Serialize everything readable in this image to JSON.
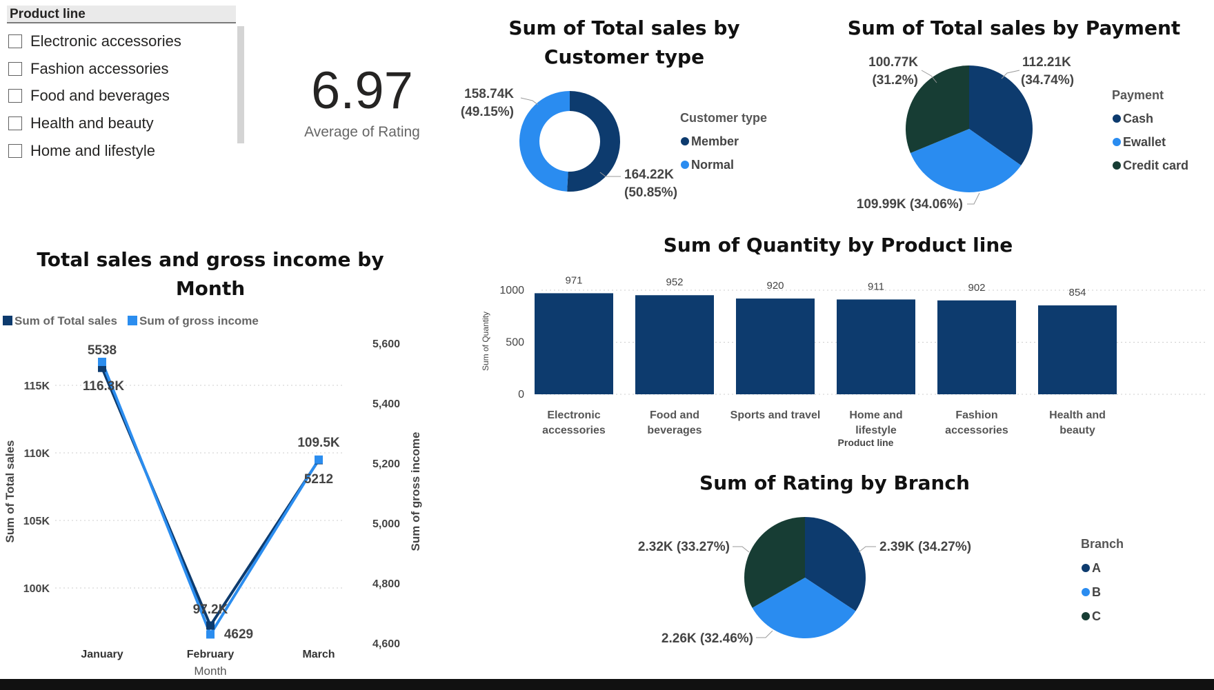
{
  "colors": {
    "member": "#0d3b6e",
    "normal": "#2a8cf0",
    "credit": "#173d34",
    "bar": "#0d3b6e",
    "line_sales": "#0d3b6e",
    "line_income": "#2b8def"
  },
  "slicer": {
    "title": "Product line",
    "items": [
      "Electronic accessories",
      "Fashion accessories",
      "Food and beverages",
      "Health and beauty",
      "Home and lifestyle"
    ]
  },
  "card": {
    "value": "6.97",
    "label": "Average of Rating"
  },
  "chart_data": [
    {
      "id": "customer_type",
      "type": "donut",
      "title_lines": [
        "Sum of Total sales by",
        "Customer type"
      ],
      "legend_title": "Customer type",
      "categories": [
        "Member",
        "Normal"
      ],
      "values": [
        164.22,
        158.74
      ],
      "labels": [
        "164.22K",
        "158.74K"
      ],
      "percents": [
        "(50.85%)",
        "(49.15%)"
      ]
    },
    {
      "id": "payment",
      "type": "pie",
      "title": "Sum of Total sales by Payment",
      "legend_title": "Payment",
      "categories": [
        "Cash",
        "Ewallet",
        "Credit card"
      ],
      "values": [
        112.21,
        109.99,
        100.77
      ],
      "labels": [
        "112.21K",
        "109.99K (34.06%)",
        "100.77K"
      ],
      "percents": [
        "(34.74%)",
        "",
        "(31.2%)"
      ]
    },
    {
      "id": "quantity",
      "type": "bar",
      "title": "Sum of Quantity by Product line",
      "xlabel": "Product line",
      "ylabel": "Sum of Quantity",
      "categories": [
        [
          "Electronic",
          "accessories"
        ],
        [
          "Food and",
          "beverages"
        ],
        [
          "Sports and travel"
        ],
        [
          "Home and",
          "lifestyle"
        ],
        [
          "Fashion",
          "accessories"
        ],
        [
          "Health and",
          "beauty"
        ]
      ],
      "values": [
        971,
        952,
        920,
        911,
        902,
        854
      ],
      "yticks": [
        0,
        500,
        1000
      ],
      "ylim": [
        0,
        1000
      ]
    },
    {
      "id": "branch",
      "type": "pie",
      "title": "Sum of Rating by Branch",
      "legend_title": "Branch",
      "categories": [
        "A",
        "B",
        "C"
      ],
      "values": [
        2.39,
        2.26,
        2.32
      ],
      "labels": [
        "2.39K (34.27%)",
        "2.26K (32.46%)",
        "2.32K (33.27%)"
      ]
    },
    {
      "id": "monthly",
      "type": "line",
      "title_lines": [
        "Total sales and gross income by",
        "Month"
      ],
      "xlabel": "Month",
      "ylabel_left": "Sum of Total sales",
      "ylabel_right": "Sum of gross income",
      "categories": [
        "January",
        "February",
        "March"
      ],
      "series": [
        {
          "name": "Sum of Total sales",
          "axis": "left",
          "values": [
            116290,
            97220,
            109460
          ],
          "labels": [
            "116.3K",
            "97.2K",
            "109.5K"
          ]
        },
        {
          "name": "Sum of gross income",
          "axis": "right",
          "values": [
            5538,
            4629,
            5212
          ],
          "labels": [
            "5538",
            "4629",
            "5212"
          ]
        }
      ],
      "left_ticks": [
        "100K",
        "105K",
        "110K",
        "115K"
      ],
      "left_tick_values": [
        100000,
        105000,
        110000,
        115000
      ],
      "right_ticks": [
        "4,600",
        "4,800",
        "5,000",
        "5,200",
        "5,400",
        "5,600"
      ],
      "right_tick_values": [
        4600,
        4800,
        5000,
        5200,
        5400,
        5600
      ]
    }
  ]
}
